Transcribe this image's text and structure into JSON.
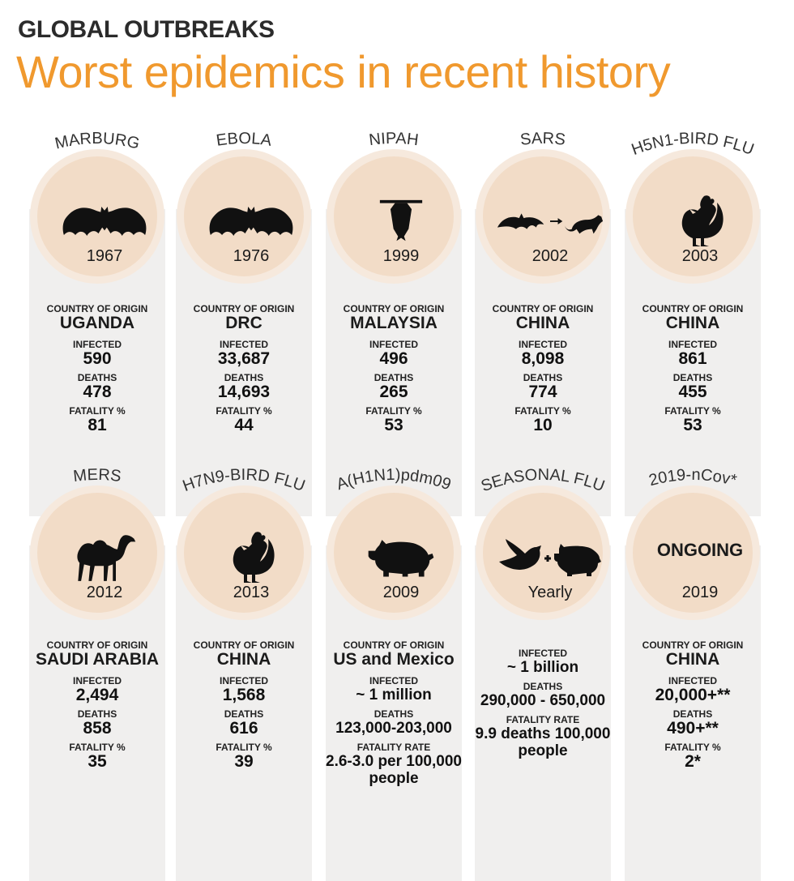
{
  "header": {
    "kicker": "GLOBAL OUTBREAKS",
    "headline": "Worst epidemics in recent history"
  },
  "colors": {
    "accent": "#f0992e",
    "circle": "#f2dcc7",
    "panel": "#f0efee"
  },
  "labels": {
    "country": "COUNTRY OF ORIGIN",
    "infected": "INFECTED",
    "deaths": "DEATHS",
    "fatality_pct": "FATALITY %",
    "fatality_rate": "FATALITY RATE"
  },
  "epidemics": [
    {
      "name": "MARBURG",
      "icon": "bat-icon",
      "year": "1967",
      "country": "UGANDA",
      "infected": "590",
      "deaths": "478",
      "fatality": "81"
    },
    {
      "name": "EBOLA",
      "icon": "bat-icon",
      "year": "1976",
      "country": "DRC",
      "infected": "33,687",
      "deaths": "14,693",
      "fatality": "44"
    },
    {
      "name": "NIPAH",
      "icon": "hanging-bat-icon",
      "year": "1999",
      "country": "MALAYSIA",
      "infected": "496",
      "deaths": "265",
      "fatality": "53"
    },
    {
      "name": "SARS",
      "icon": "bat-to-civet-icon",
      "year": "2002",
      "country": "CHINA",
      "infected": "8,098",
      "deaths": "774",
      "fatality": "10"
    },
    {
      "name": "H5N1-BIRD FLU",
      "icon": "rooster-icon",
      "year": "2003",
      "country": "CHINA",
      "infected": "861",
      "deaths": "455",
      "fatality": "53"
    },
    {
      "name": "MERS",
      "icon": "camel-icon",
      "year": "2012",
      "country": "SAUDI ARABIA",
      "infected": "2,494",
      "deaths": "858",
      "fatality": "35"
    },
    {
      "name": "H7N9-BIRD FLU",
      "icon": "rooster-icon",
      "year": "2013",
      "country": "CHINA",
      "infected": "1,568",
      "deaths": "616",
      "fatality": "39"
    },
    {
      "name": "A(H1N1)pdm09",
      "icon": "pig-icon",
      "year": "2009",
      "country": "US and Mexico",
      "infected": "~ 1 million",
      "deaths": "123,000-203,000",
      "fatality_rate": "2.6-3.0 per 100,000 people"
    },
    {
      "name": "SEASONAL FLU",
      "icon": "bird-plus-pig-icon",
      "year": "Yearly",
      "infected": "~ 1 billion",
      "deaths": "290,000 - 650,000",
      "fatality_rate": "9.9 deaths 100,000 people"
    },
    {
      "name": "2019-nCov*",
      "status": "ONGOING",
      "year": "2019",
      "country": "CHINA",
      "infected": "20,000+**",
      "deaths": "490+**",
      "fatality": "2*"
    }
  ]
}
